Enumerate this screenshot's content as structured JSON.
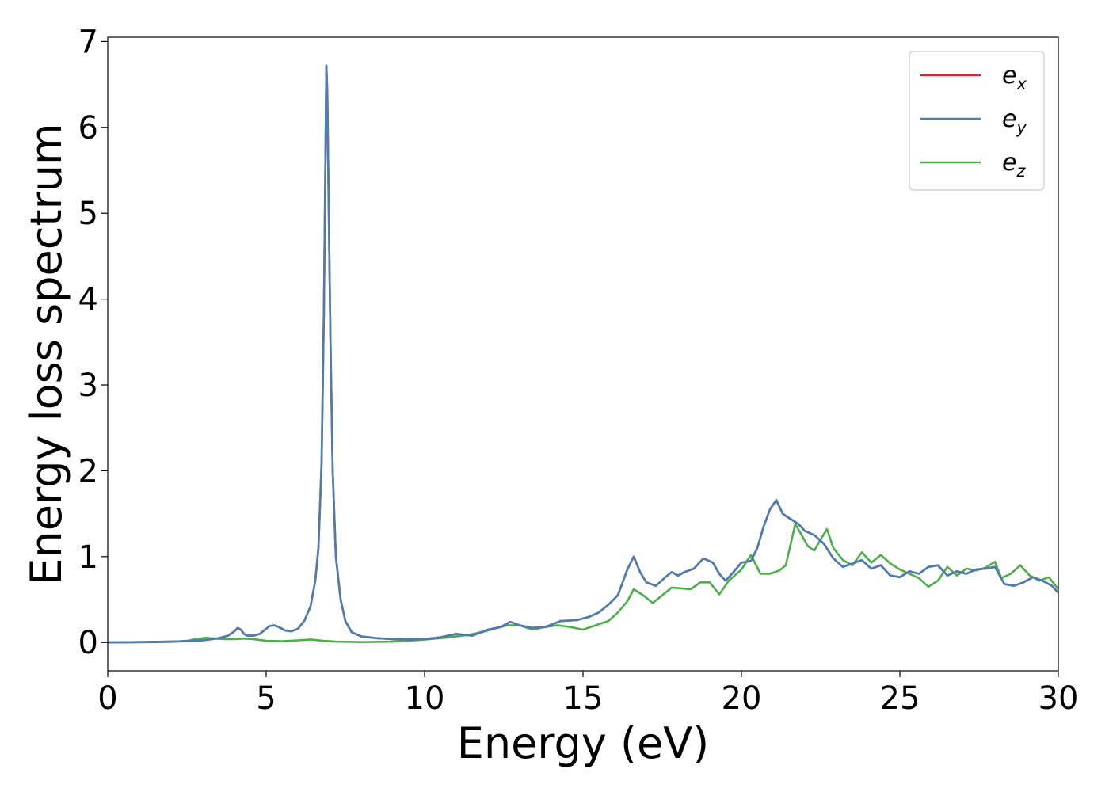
{
  "chart_data": {
    "type": "line",
    "xlabel": "Energy (eV)",
    "ylabel": "Energy loss spectrum",
    "xlim": [
      0,
      30
    ],
    "ylim": [
      -0.33,
      7.05
    ],
    "xticks": [
      "0",
      "5",
      "10",
      "15",
      "20",
      "25",
      "30"
    ],
    "yticks": [
      "0",
      "1",
      "2",
      "3",
      "4",
      "5",
      "6",
      "7"
    ],
    "grid": false,
    "legend_position": "top-right",
    "series": [
      {
        "name": "e_x",
        "legend_base": "e",
        "legend_sub": "x",
        "color": "#d62728",
        "x": [
          0,
          1,
          2,
          2.5,
          3,
          3.5,
          3.8,
          4.0,
          4.1,
          4.2,
          4.3,
          4.4,
          4.6,
          4.8,
          5.0,
          5.1,
          5.25,
          5.4,
          5.6,
          5.8,
          6.0,
          6.2,
          6.4,
          6.55,
          6.65,
          6.75,
          6.82,
          6.87,
          6.9,
          6.93,
          6.97,
          7.03,
          7.1,
          7.2,
          7.35,
          7.5,
          7.7,
          8.0,
          8.5,
          9.0,
          9.5,
          10.0,
          10.5,
          11.0,
          11.5,
          12.0,
          12.4,
          12.7,
          13.0,
          13.4,
          13.8,
          14.3,
          14.8,
          15.2,
          15.5,
          15.8,
          16.1,
          16.4,
          16.6,
          16.8,
          17.0,
          17.3,
          17.6,
          17.8,
          18.0,
          18.2,
          18.5,
          18.8,
          19.1,
          19.3,
          19.5,
          19.7,
          20.0,
          20.3,
          20.5,
          20.7,
          20.9,
          21.1,
          21.3,
          21.5,
          21.8,
          22.0,
          22.3,
          22.6,
          22.9,
          23.2,
          23.5,
          23.8,
          24.1,
          24.4,
          24.7,
          25.0,
          25.3,
          25.6,
          25.9,
          26.2,
          26.5,
          26.8,
          27.1,
          27.4,
          27.7,
          28.0,
          28.3,
          28.6,
          28.9,
          29.2,
          29.5,
          29.8,
          30.0
        ],
        "y": [
          0.0,
          0.005,
          0.01,
          0.015,
          0.025,
          0.05,
          0.08,
          0.13,
          0.17,
          0.15,
          0.1,
          0.08,
          0.08,
          0.1,
          0.16,
          0.19,
          0.2,
          0.18,
          0.14,
          0.13,
          0.16,
          0.25,
          0.42,
          0.72,
          1.1,
          2.1,
          3.8,
          5.6,
          6.72,
          6.4,
          5.2,
          3.5,
          2.0,
          1.0,
          0.5,
          0.25,
          0.12,
          0.07,
          0.05,
          0.04,
          0.035,
          0.04,
          0.06,
          0.1,
          0.08,
          0.15,
          0.18,
          0.24,
          0.2,
          0.17,
          0.18,
          0.25,
          0.26,
          0.3,
          0.35,
          0.44,
          0.55,
          0.85,
          1.0,
          0.82,
          0.7,
          0.66,
          0.76,
          0.82,
          0.78,
          0.82,
          0.86,
          0.98,
          0.93,
          0.8,
          0.72,
          0.8,
          0.93,
          0.95,
          1.1,
          1.35,
          1.55,
          1.66,
          1.5,
          1.45,
          1.38,
          1.3,
          1.25,
          1.15,
          0.98,
          0.88,
          0.92,
          0.96,
          0.86,
          0.9,
          0.78,
          0.76,
          0.83,
          0.8,
          0.88,
          0.9,
          0.78,
          0.83,
          0.8,
          0.85,
          0.86,
          0.88,
          0.68,
          0.66,
          0.7,
          0.76,
          0.72,
          0.66,
          0.58
        ]
      },
      {
        "name": "e_y",
        "legend_base": "e",
        "legend_sub": "y",
        "color": "#4a7db4",
        "x": [
          0,
          1,
          2,
          2.5,
          3,
          3.5,
          3.8,
          4.0,
          4.1,
          4.2,
          4.3,
          4.4,
          4.6,
          4.8,
          5.0,
          5.1,
          5.25,
          5.4,
          5.6,
          5.8,
          6.0,
          6.2,
          6.4,
          6.55,
          6.65,
          6.75,
          6.82,
          6.87,
          6.9,
          6.93,
          6.97,
          7.03,
          7.1,
          7.2,
          7.35,
          7.5,
          7.7,
          8.0,
          8.5,
          9.0,
          9.5,
          10.0,
          10.5,
          11.0,
          11.5,
          12.0,
          12.4,
          12.7,
          13.0,
          13.4,
          13.8,
          14.3,
          14.8,
          15.2,
          15.5,
          15.8,
          16.1,
          16.4,
          16.6,
          16.8,
          17.0,
          17.3,
          17.6,
          17.8,
          18.0,
          18.2,
          18.5,
          18.8,
          19.1,
          19.3,
          19.5,
          19.7,
          20.0,
          20.3,
          20.5,
          20.7,
          20.9,
          21.1,
          21.3,
          21.5,
          21.8,
          22.0,
          22.3,
          22.6,
          22.9,
          23.2,
          23.5,
          23.8,
          24.1,
          24.4,
          24.7,
          25.0,
          25.3,
          25.6,
          25.9,
          26.2,
          26.5,
          26.8,
          27.1,
          27.4,
          27.7,
          28.0,
          28.3,
          28.6,
          28.9,
          29.2,
          29.5,
          29.8,
          30.0
        ],
        "y": [
          0.0,
          0.005,
          0.01,
          0.015,
          0.025,
          0.05,
          0.08,
          0.13,
          0.17,
          0.15,
          0.1,
          0.08,
          0.08,
          0.1,
          0.16,
          0.19,
          0.2,
          0.18,
          0.14,
          0.13,
          0.16,
          0.25,
          0.42,
          0.72,
          1.1,
          2.1,
          3.8,
          5.6,
          6.72,
          6.4,
          5.2,
          3.5,
          2.0,
          1.0,
          0.5,
          0.25,
          0.12,
          0.07,
          0.05,
          0.04,
          0.035,
          0.04,
          0.06,
          0.1,
          0.08,
          0.15,
          0.18,
          0.24,
          0.2,
          0.17,
          0.18,
          0.25,
          0.26,
          0.3,
          0.35,
          0.44,
          0.55,
          0.85,
          1.0,
          0.82,
          0.7,
          0.66,
          0.76,
          0.82,
          0.78,
          0.82,
          0.86,
          0.98,
          0.93,
          0.8,
          0.72,
          0.8,
          0.93,
          0.95,
          1.1,
          1.35,
          1.55,
          1.66,
          1.5,
          1.45,
          1.38,
          1.3,
          1.25,
          1.15,
          0.98,
          0.88,
          0.92,
          0.96,
          0.86,
          0.9,
          0.78,
          0.76,
          0.83,
          0.8,
          0.88,
          0.9,
          0.78,
          0.83,
          0.8,
          0.85,
          0.86,
          0.88,
          0.68,
          0.66,
          0.7,
          0.76,
          0.72,
          0.66,
          0.58
        ]
      },
      {
        "name": "e_z",
        "legend_base": "e",
        "legend_sub": "z",
        "color": "#4daf4a",
        "x": [
          0,
          1,
          2,
          2.5,
          2.8,
          3.1,
          3.4,
          3.7,
          4.0,
          4.3,
          4.6,
          5.0,
          5.5,
          6.0,
          6.4,
          6.8,
          7.2,
          8.0,
          9.0,
          9.5,
          10.0,
          10.5,
          11.0,
          11.4,
          11.8,
          12.2,
          12.6,
          13.0,
          13.4,
          13.8,
          14.2,
          14.6,
          15.0,
          15.4,
          15.8,
          16.1,
          16.4,
          16.6,
          16.9,
          17.2,
          17.5,
          17.8,
          18.1,
          18.4,
          18.7,
          19.0,
          19.3,
          19.6,
          20.0,
          20.3,
          20.6,
          20.9,
          21.2,
          21.4,
          21.7,
          21.9,
          22.1,
          22.3,
          22.5,
          22.7,
          22.9,
          23.2,
          23.5,
          23.8,
          24.1,
          24.4,
          24.7,
          25.0,
          25.3,
          25.6,
          25.9,
          26.2,
          26.5,
          26.8,
          27.1,
          27.4,
          27.7,
          28.0,
          28.2,
          28.5,
          28.8,
          29.1,
          29.4,
          29.7,
          30.0
        ],
        "y": [
          0.0,
          0.003,
          0.008,
          0.02,
          0.04,
          0.055,
          0.045,
          0.04,
          0.04,
          0.045,
          0.04,
          0.02,
          0.015,
          0.025,
          0.035,
          0.02,
          0.01,
          0.005,
          0.01,
          0.02,
          0.035,
          0.05,
          0.07,
          0.09,
          0.12,
          0.16,
          0.2,
          0.2,
          0.15,
          0.18,
          0.2,
          0.18,
          0.15,
          0.2,
          0.25,
          0.35,
          0.48,
          0.62,
          0.55,
          0.46,
          0.55,
          0.64,
          0.63,
          0.62,
          0.7,
          0.7,
          0.56,
          0.72,
          0.85,
          1.02,
          0.8,
          0.8,
          0.84,
          0.9,
          1.38,
          1.25,
          1.12,
          1.07,
          1.2,
          1.32,
          1.1,
          0.96,
          0.9,
          1.05,
          0.93,
          1.02,
          0.92,
          0.85,
          0.8,
          0.75,
          0.65,
          0.72,
          0.88,
          0.78,
          0.86,
          0.84,
          0.87,
          0.94,
          0.75,
          0.8,
          0.9,
          0.78,
          0.72,
          0.76,
          0.62
        ]
      }
    ]
  }
}
